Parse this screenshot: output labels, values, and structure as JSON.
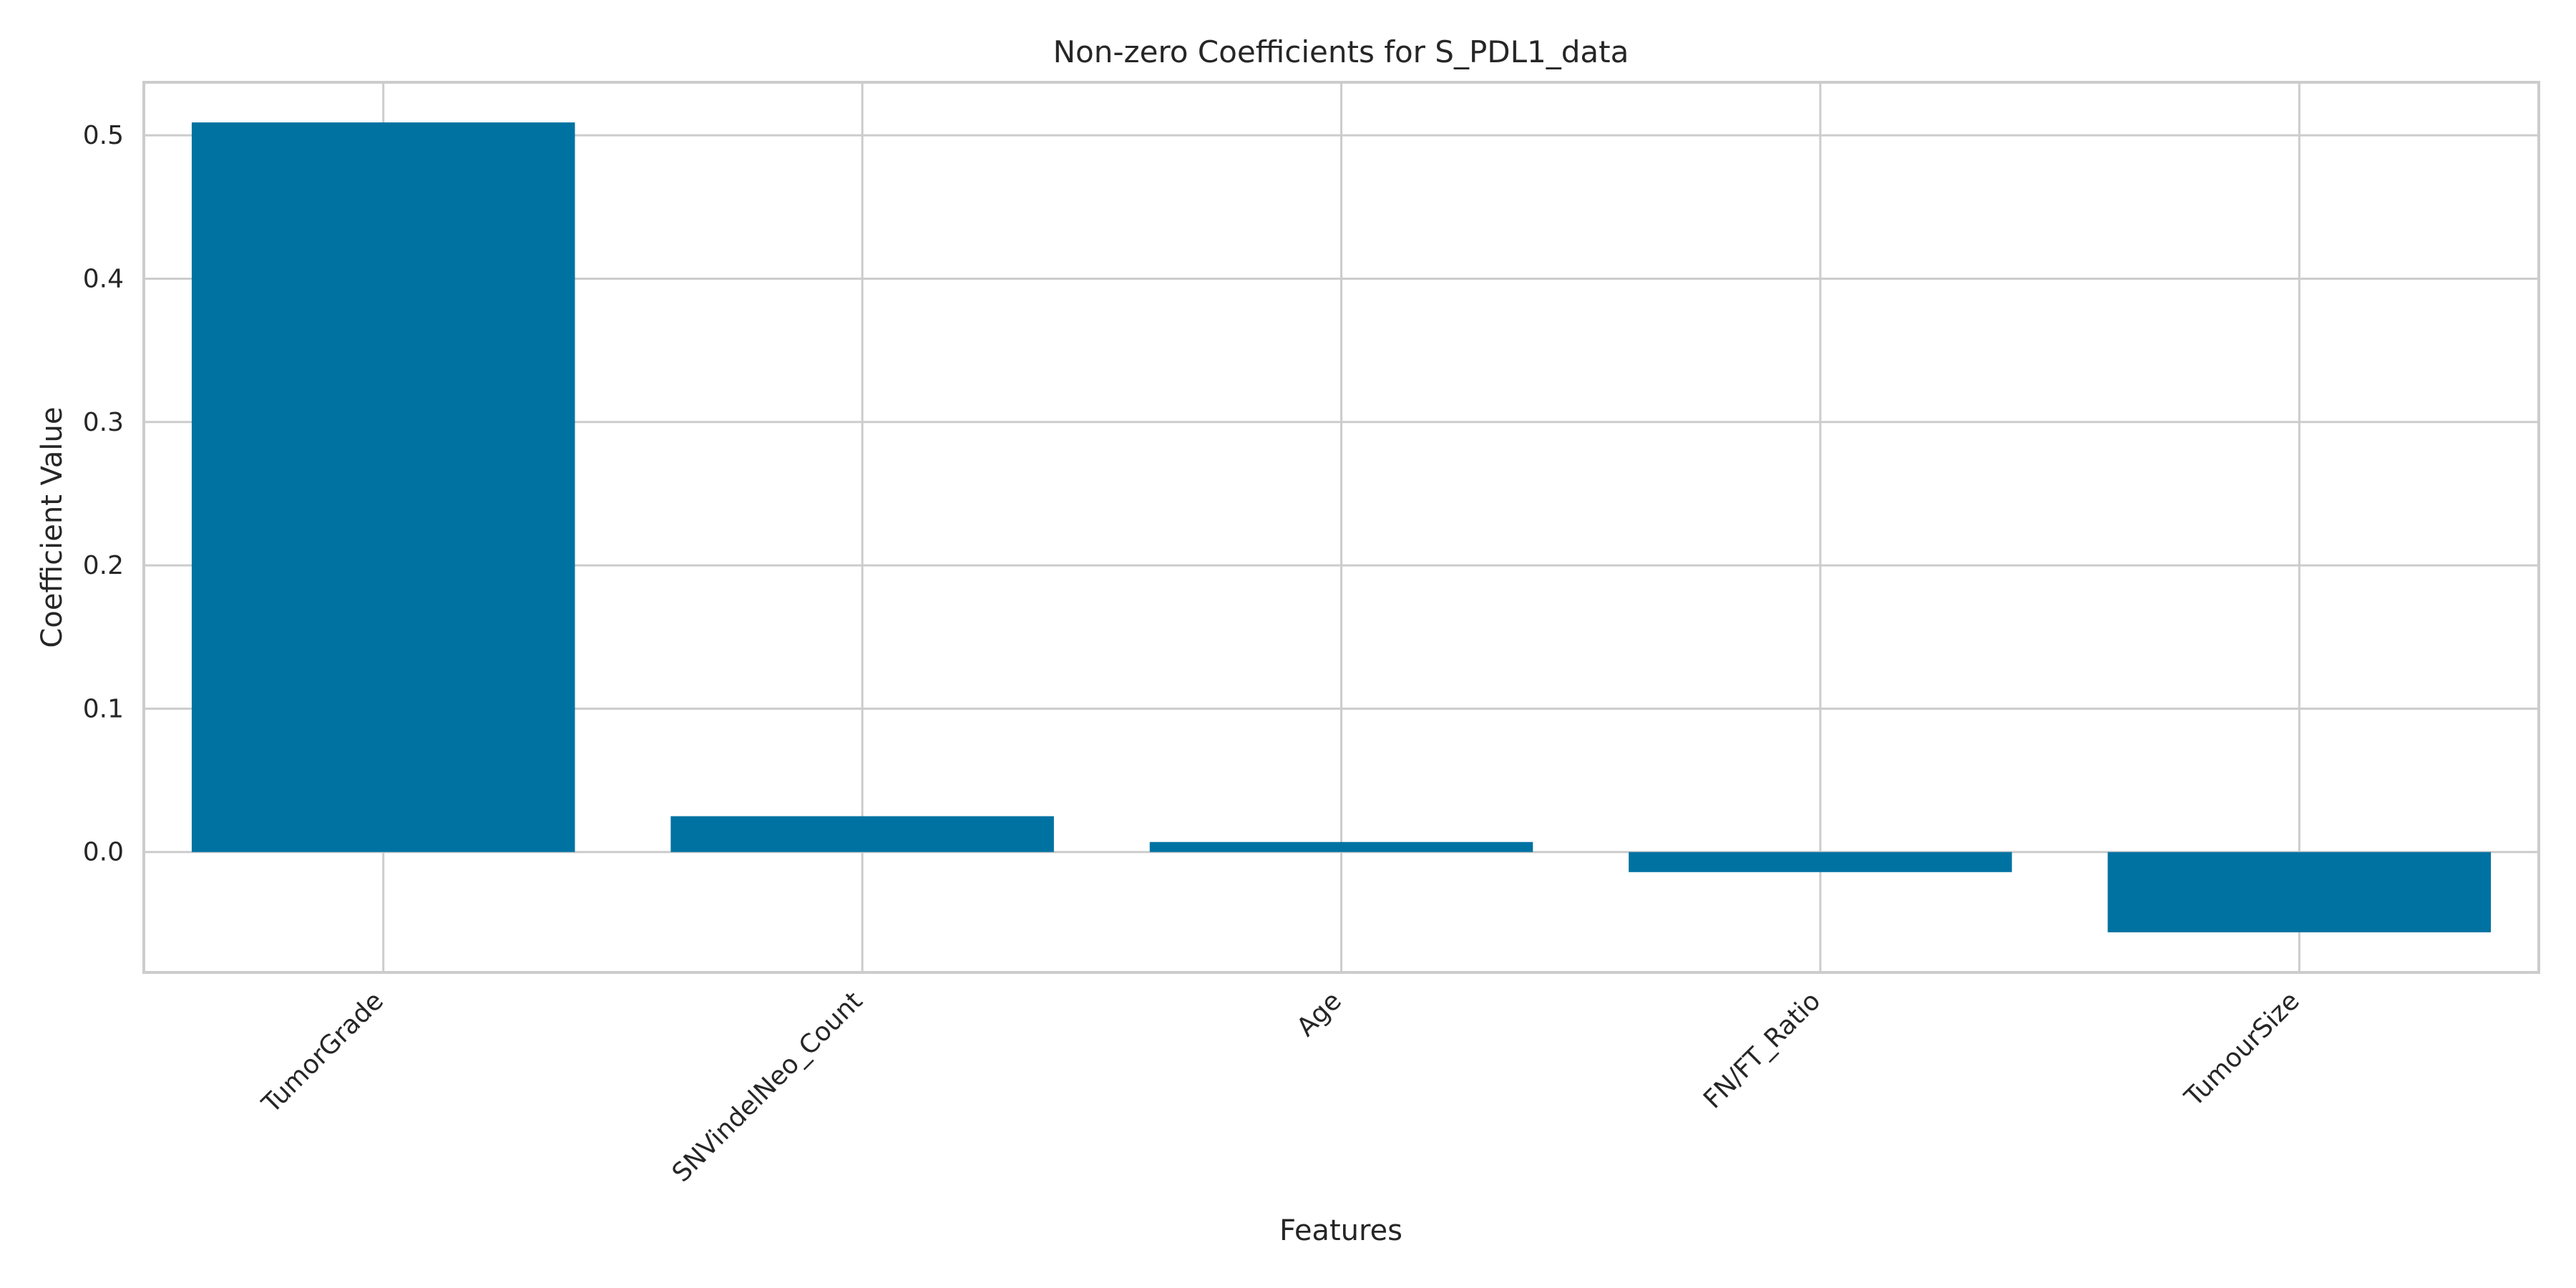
{
  "chart_data": {
    "type": "bar",
    "title": "Non-zero Coefficients for S_PDL1_data",
    "xlabel": "Features",
    "ylabel": "Coefficient Value",
    "categories": [
      "TumorGrade",
      "SNVindelNeo_Count",
      "Age",
      "FN/FT_Ratio",
      "TumourSize"
    ],
    "values": [
      0.509,
      0.025,
      0.007,
      -0.014,
      -0.056
    ],
    "ylim": [
      -0.084,
      0.537
    ],
    "yticks": [
      0.0,
      0.1,
      0.2,
      0.3,
      0.4,
      0.5
    ],
    "ytick_labels": [
      "0.0",
      "0.1",
      "0.2",
      "0.3",
      "0.4",
      "0.5"
    ],
    "grid": true,
    "legend": "none",
    "bar_color": "#0072a2",
    "grid_color": "#cccccc"
  }
}
